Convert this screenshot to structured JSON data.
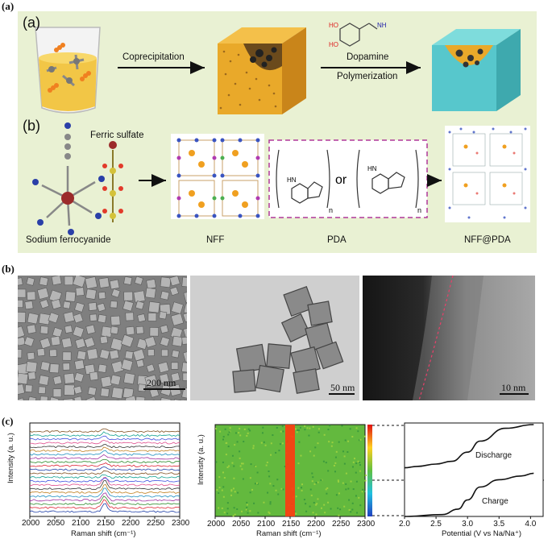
{
  "panels": {
    "a_label": "(a)",
    "b_label": "(b)",
    "c_label": "(c)"
  },
  "schematic": {
    "sub_a": "(a)",
    "sub_b": "(b)",
    "coprecipitation": "Coprecipitation",
    "dopamine": "Dopamine",
    "polymerization": "Polymerization",
    "ferric_sulfate": "Ferric sulfate",
    "sodium_ferrocyanide": "Sodium ferrocyanide",
    "nff": "NFF",
    "pda": "PDA",
    "nff_pda": "NFF@PDA",
    "or": "or",
    "n1": "n",
    "n2": "n",
    "hn1": "HN",
    "hn2": "HN",
    "nh2": "NH",
    "ho1": "HO",
    "ho2": "HO"
  },
  "micrographs": {
    "scale1": "200 nm",
    "scale2": "50 nm",
    "scale3": "10 nm"
  },
  "colors": {
    "schematic_bg": "#e9f1d3",
    "cube_gold": "#e9a92a",
    "cube_teal": "#57c7cc",
    "pda_dash": "#b0399a",
    "heat_bg": "#63b93e",
    "heat_band": "#ff3a10"
  },
  "chart_data": [
    {
      "type": "line",
      "xlabel": "Raman shift (cm⁻¹)",
      "ylabel": "Intensity (a. u.)",
      "xlim": [
        2000,
        2300
      ],
      "x_ticks": [
        "2000",
        "2050",
        "2100",
        "2150",
        "2200",
        "2250",
        "2300"
      ],
      "peak_position": 2150,
      "series_count": 22,
      "grid": false
    },
    {
      "type": "heatmap",
      "xlabel": "Raman shift (cm⁻¹)",
      "ylabel": "Intensity (a. u.)",
      "xlim": [
        2000,
        2300
      ],
      "x_ticks": [
        "2000",
        "2050",
        "2100",
        "2150",
        "2200",
        "2250",
        "2300"
      ],
      "band_center": 2150,
      "colorbar": "rainbow"
    },
    {
      "type": "line",
      "xlabel": "Potential (V vs Na/Na⁺)",
      "xlim": [
        2.0,
        4.2
      ],
      "x_ticks": [
        "2.0",
        "2.5",
        "3.0",
        "3.5",
        "4.0"
      ],
      "annotations": [
        "Discharge",
        "Charge"
      ],
      "series": [
        {
          "name": "Discharge",
          "x": [
            4.05,
            3.6,
            3.2,
            3.0,
            2.75,
            2.5,
            2.2,
            2.0
          ],
          "y": [
            1.0,
            0.96,
            0.82,
            0.7,
            0.6,
            0.57,
            0.545,
            0.53
          ]
        },
        {
          "name": "Charge",
          "x": [
            2.0,
            2.6,
            2.85,
            3.0,
            3.2,
            3.5,
            3.85,
            4.05
          ],
          "y": [
            0.0,
            0.02,
            0.08,
            0.18,
            0.32,
            0.4,
            0.44,
            0.47
          ]
        }
      ]
    }
  ]
}
